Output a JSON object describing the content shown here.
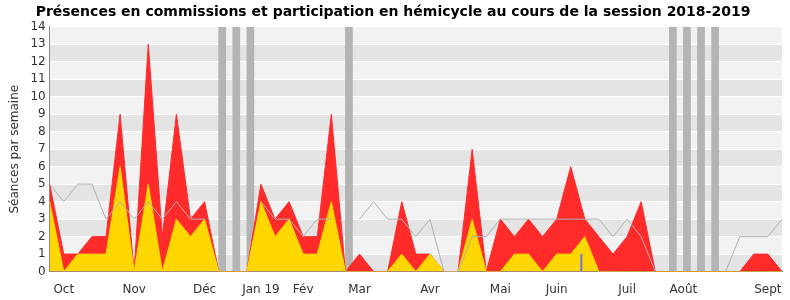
{
  "chart_data": {
    "type": "line",
    "title": "Présences en commissions et participation en hémicycle au cours de la session 2018-2019",
    "y_label": "Séances par semaine",
    "categories": [
      null,
      "Oct",
      null,
      null,
      null,
      null,
      "Nov",
      null,
      null,
      null,
      null,
      "Déc",
      null,
      null,
      null,
      "Jan 19",
      null,
      null,
      "Fév",
      null,
      null,
      null,
      "Mar",
      null,
      null,
      null,
      null,
      "Avr",
      null,
      null,
      null,
      null,
      "Mai",
      null,
      null,
      null,
      "Juin",
      null,
      null,
      null,
      null,
      "Juil",
      null,
      null,
      null,
      "Août",
      null,
      null,
      null,
      null,
      null,
      "Sept",
      null
    ],
    "ylim": [
      0,
      14
    ],
    "yticks": [
      0,
      1,
      2,
      3,
      4,
      5,
      6,
      7,
      8,
      9,
      10,
      11,
      12,
      13,
      14
    ],
    "grid": true,
    "stacked": false,
    "series": [
      {
        "type": "bar",
        "color": "#b4b4b4",
        "values": [
          null,
          null,
          null,
          null,
          null,
          null,
          null,
          null,
          null,
          null,
          null,
          null,
          14,
          14,
          14,
          null,
          null,
          null,
          null,
          null,
          null,
          14,
          null,
          null,
          null,
          null,
          null,
          null,
          null,
          null,
          null,
          null,
          null,
          null,
          null,
          null,
          null,
          null,
          null,
          null,
          null,
          null,
          null,
          null,
          14,
          14,
          14,
          14,
          null,
          null,
          null,
          null,
          null
        ]
      },
      {
        "type": "area",
        "color": "#ff2a2a",
        "values": [
          5,
          1,
          1,
          2,
          2,
          9,
          0,
          13,
          2,
          9,
          3,
          4,
          0,
          0,
          0,
          5,
          3,
          4,
          2,
          2,
          9,
          0,
          1,
          0,
          0,
          4,
          1,
          1,
          0,
          0,
          7,
          0,
          3,
          2,
          3,
          2,
          3,
          6,
          3,
          2,
          1,
          2,
          4,
          0,
          0,
          0,
          0,
          0,
          0,
          0,
          1,
          1,
          0
        ]
      },
      {
        "type": "area",
        "color": "#ffd700",
        "values": [
          4,
          0,
          1,
          1,
          1,
          6,
          0,
          5,
          0,
          3,
          2,
          3,
          0,
          0,
          0,
          4,
          2,
          3,
          1,
          1,
          4,
          0,
          0,
          0,
          0,
          1,
          0,
          1,
          0,
          0,
          3,
          0,
          0,
          1,
          1,
          0,
          1,
          1,
          2,
          0,
          0,
          0,
          0,
          0,
          0,
          0,
          0,
          0,
          0,
          0,
          0,
          0,
          0
        ]
      },
      {
        "type": "line",
        "color": "#b0b0b0",
        "values": [
          5,
          4,
          5,
          5,
          3,
          4,
          3,
          4,
          3,
          4,
          3,
          3,
          null,
          null,
          null,
          4,
          3,
          3,
          2,
          3,
          3,
          null,
          3,
          4,
          3,
          3,
          2,
          3,
          0,
          0,
          2,
          2,
          3,
          3,
          3,
          3,
          3,
          3,
          3,
          3,
          2,
          3,
          2,
          0,
          null,
          null,
          null,
          null,
          0,
          2,
          2,
          2,
          3
        ]
      },
      {
        "type": "bar",
        "color": "#7777dd",
        "values": [
          null,
          null,
          null,
          null,
          null,
          null,
          null,
          null,
          null,
          null,
          null,
          null,
          null,
          null,
          null,
          null,
          null,
          null,
          null,
          null,
          null,
          null,
          null,
          null,
          null,
          null,
          null,
          null,
          null,
          null,
          null,
          null,
          null,
          null,
          null,
          null,
          null,
          null,
          1,
          null,
          null,
          null,
          null,
          null,
          null,
          null,
          null,
          null,
          null,
          null,
          null,
          null,
          null
        ]
      }
    ]
  }
}
